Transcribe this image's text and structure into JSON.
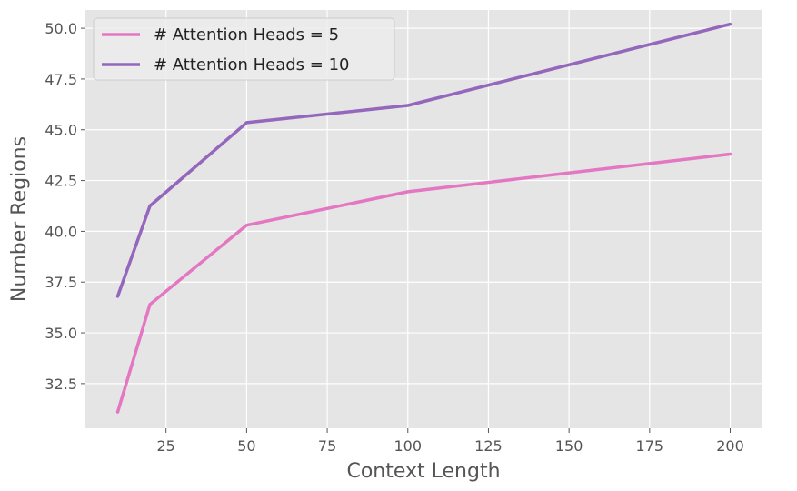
{
  "chart_data": {
    "type": "line",
    "xlabel": "Context Length",
    "ylabel": "Number Regions",
    "xlim": [
      0,
      210
    ],
    "ylim": [
      30.3,
      50.9
    ],
    "xticks": [
      25,
      50,
      75,
      100,
      125,
      150,
      175,
      200
    ],
    "yticks": [
      32.5,
      35.0,
      37.5,
      40.0,
      42.5,
      45.0,
      47.5,
      50.0
    ],
    "xtick_labels": [
      "25",
      "50",
      "75",
      "100",
      "125",
      "150",
      "175",
      "200"
    ],
    "ytick_labels": [
      "32.5",
      "35.0",
      "37.5",
      "40.0",
      "42.5",
      "45.0",
      "47.5",
      "50.0"
    ],
    "grid": true,
    "legend_position": "top-left",
    "x": [
      10,
      20,
      50,
      100,
      200
    ],
    "series": [
      {
        "name": "# Attention Heads = 5",
        "color": "#e377c2",
        "values": [
          31.1,
          36.4,
          40.3,
          41.95,
          43.8
        ]
      },
      {
        "name": "# Attention Heads = 10",
        "color": "#9467bd",
        "values": [
          36.8,
          41.25,
          45.35,
          46.2,
          50.2
        ]
      }
    ]
  }
}
